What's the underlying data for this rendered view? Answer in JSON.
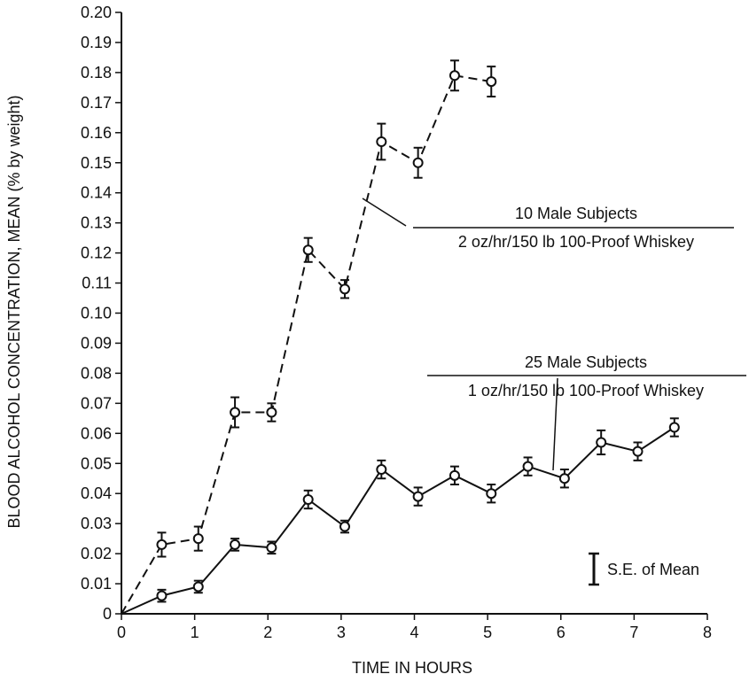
{
  "chart_data": {
    "type": "line",
    "xlabel": "TIME IN HOURS",
    "ylabel": "BLOOD ALCOHOL CONCENTRATION, MEAN (% by weight)",
    "xlim": [
      0,
      8
    ],
    "ylim": [
      0,
      0.2
    ],
    "x_ticks": [
      "0",
      "1",
      "2",
      "3",
      "4",
      "5",
      "6",
      "7",
      "8"
    ],
    "y_ticks": [
      "0",
      "0.01",
      "0.02",
      "0.03",
      "0.04",
      "0.05",
      "0.06",
      "0.07",
      "0.08",
      "0.09",
      "0.10",
      "0.11",
      "0.12",
      "0.13",
      "0.14",
      "0.15",
      "0.16",
      "0.17",
      "0.18",
      "0.19",
      "0.20"
    ],
    "grid": false,
    "series": [
      {
        "name_line1": "10 Male Subjects",
        "name_line2": "2 oz/hr/150 lb 100-Proof Whiskey",
        "line_style": "dashed",
        "x": [
          0,
          0.55,
          1.05,
          1.55,
          2.05,
          2.55,
          3.05,
          3.55,
          4.05,
          4.55,
          5.05
        ],
        "y": [
          0,
          0.023,
          0.025,
          0.067,
          0.067,
          0.121,
          0.108,
          0.157,
          0.15,
          0.179,
          0.177
        ],
        "se": [
          0,
          0.004,
          0.004,
          0.005,
          0.003,
          0.004,
          0.003,
          0.006,
          0.005,
          0.005,
          0.005
        ]
      },
      {
        "name_line1": "25 Male Subjects",
        "name_line2": "1 oz/hr/150 lb 100-Proof Whiskey",
        "line_style": "solid",
        "x": [
          0,
          0.55,
          1.05,
          1.55,
          2.05,
          2.55,
          3.05,
          3.55,
          4.05,
          4.55,
          5.05,
          5.55,
          6.05,
          6.55,
          7.05,
          7.55
        ],
        "y": [
          0,
          0.006,
          0.009,
          0.023,
          0.022,
          0.038,
          0.029,
          0.048,
          0.039,
          0.046,
          0.04,
          0.049,
          0.045,
          0.057,
          0.054,
          0.062
        ],
        "se": [
          0,
          0.002,
          0.002,
          0.002,
          0.002,
          0.003,
          0.002,
          0.003,
          0.003,
          0.003,
          0.003,
          0.003,
          0.003,
          0.004,
          0.003,
          0.003
        ]
      }
    ],
    "legend_key": "S.E. of Mean"
  }
}
